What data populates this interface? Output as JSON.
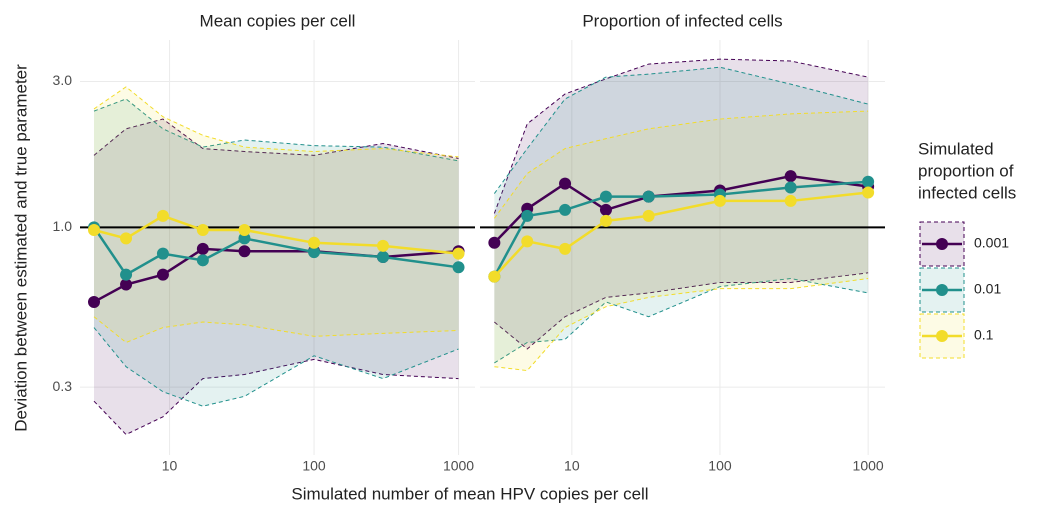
{
  "chart_data": {
    "type": "line",
    "xlabel": "Simulated number of mean HPV copies per cell",
    "ylabel": "Deviation between estimated and true parameter",
    "legend_title": [
      "Simulated",
      "proportion of",
      "infected cells"
    ],
    "log_x": true,
    "log_y": true,
    "grid": true,
    "x": [
      3,
      5,
      9,
      17,
      33,
      100,
      300,
      1000
    ],
    "xlim": [
      2.4,
      1300
    ],
    "xticks": [
      10,
      100,
      1000
    ],
    "ylim": [
      0.18,
      4.1
    ],
    "yticks": [
      {
        "value": 0.3,
        "label": "0.3"
      },
      {
        "value": 1,
        "label": "1.0"
      },
      {
        "value": 3,
        "label": "3.0"
      }
    ],
    "hline": 1,
    "facets": [
      {
        "title": "Mean copies per cell",
        "series": [
          {
            "name": "0.001",
            "color": "#440154",
            "values": [
              0.57,
              0.65,
              0.7,
              0.85,
              0.835,
              0.835,
              0.8,
              0.835
            ],
            "upper": [
              1.72,
              2.1,
              2.26,
              1.81,
              1.77,
              1.72,
              1.88,
              1.68
            ],
            "lower": [
              0.27,
              0.21,
              0.24,
              0.32,
              0.33,
              0.37,
              0.33,
              0.32
            ]
          },
          {
            "name": "0.01",
            "color": "#21908C",
            "values": [
              1.0,
              0.7,
              0.82,
              0.78,
              0.92,
              0.83,
              0.8,
              0.74
            ],
            "upper": [
              2.4,
              2.63,
              2.1,
              1.83,
              1.93,
              1.85,
              1.83,
              1.65
            ],
            "lower": [
              0.47,
              0.35,
              0.29,
              0.26,
              0.28,
              0.38,
              0.32,
              0.4
            ]
          },
          {
            "name": "0.1",
            "color": "#F2DC2A",
            "values": [
              0.98,
              0.92,
              1.09,
              0.98,
              0.98,
              0.89,
              0.87,
              0.82
            ],
            "upper": [
              2.44,
              2.88,
              2.3,
              2.0,
              1.83,
              1.77,
              1.81,
              1.7
            ],
            "lower": [
              0.51,
              0.42,
              0.47,
              0.49,
              0.48,
              0.44,
              0.45,
              0.46
            ]
          }
        ]
      },
      {
        "title": "Proportion of infected cells",
        "series": [
          {
            "name": "0.001",
            "color": "#440154",
            "values": [
              0.89,
              1.15,
              1.39,
              1.14,
              1.26,
              1.32,
              1.47,
              1.36
            ],
            "upper": [
              1.11,
              2.18,
              2.73,
              3.06,
              3.42,
              3.55,
              3.5,
              3.1
            ],
            "lower": [
              0.49,
              0.4,
              0.51,
              0.59,
              0.61,
              0.66,
              0.66,
              0.71
            ]
          },
          {
            "name": "0.01",
            "color": "#21908C",
            "values": [
              0.69,
              1.09,
              1.14,
              1.26,
              1.26,
              1.28,
              1.35,
              1.41
            ],
            "upper": [
              1.29,
              1.81,
              2.63,
              3.1,
              3.17,
              3.34,
              2.94,
              2.53
            ],
            "lower": [
              0.36,
              0.42,
              0.43,
              0.57,
              0.51,
              0.64,
              0.68,
              0.61
            ]
          },
          {
            "name": "0.1",
            "color": "#F2DC2A",
            "values": [
              0.69,
              0.9,
              0.85,
              1.05,
              1.09,
              1.22,
              1.22,
              1.3
            ],
            "upper": [
              1.07,
              1.5,
              1.81,
              1.95,
              2.1,
              2.26,
              2.35,
              2.4
            ],
            "lower": [
              0.35,
              0.34,
              0.47,
              0.55,
              0.59,
              0.63,
              0.63,
              0.68
            ]
          }
        ]
      }
    ]
  }
}
